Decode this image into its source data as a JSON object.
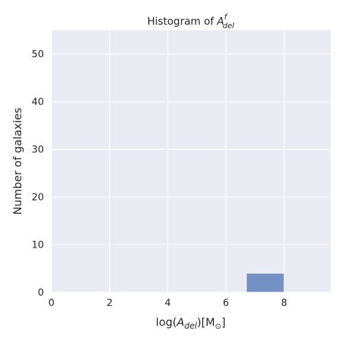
{
  "chart_data": {
    "type": "bar",
    "title_main": "Histogram of ",
    "title_var": "A",
    "title_sup": "f",
    "title_sub": "del",
    "xlabel_pre": "log(",
    "xlabel_var": "A",
    "xlabel_sub": "del",
    "xlabel_post": ")[M",
    "xlabel_sym": "⊙",
    "xlabel_end": "]",
    "ylabel": "Number of galaxies",
    "xlim": [
      0,
      9.6
    ],
    "ylim": [
      0,
      55
    ],
    "xticks": [
      0,
      2,
      4,
      6,
      8
    ],
    "yticks": [
      0,
      10,
      20,
      30,
      40,
      50
    ],
    "grid": true,
    "bars": [
      {
        "x0": 6.7,
        "x1": 8.0,
        "value": 4
      }
    ],
    "colors": {
      "bar": "#7390c4",
      "background": "#eaeaf2",
      "grid": "#ffffff"
    }
  }
}
